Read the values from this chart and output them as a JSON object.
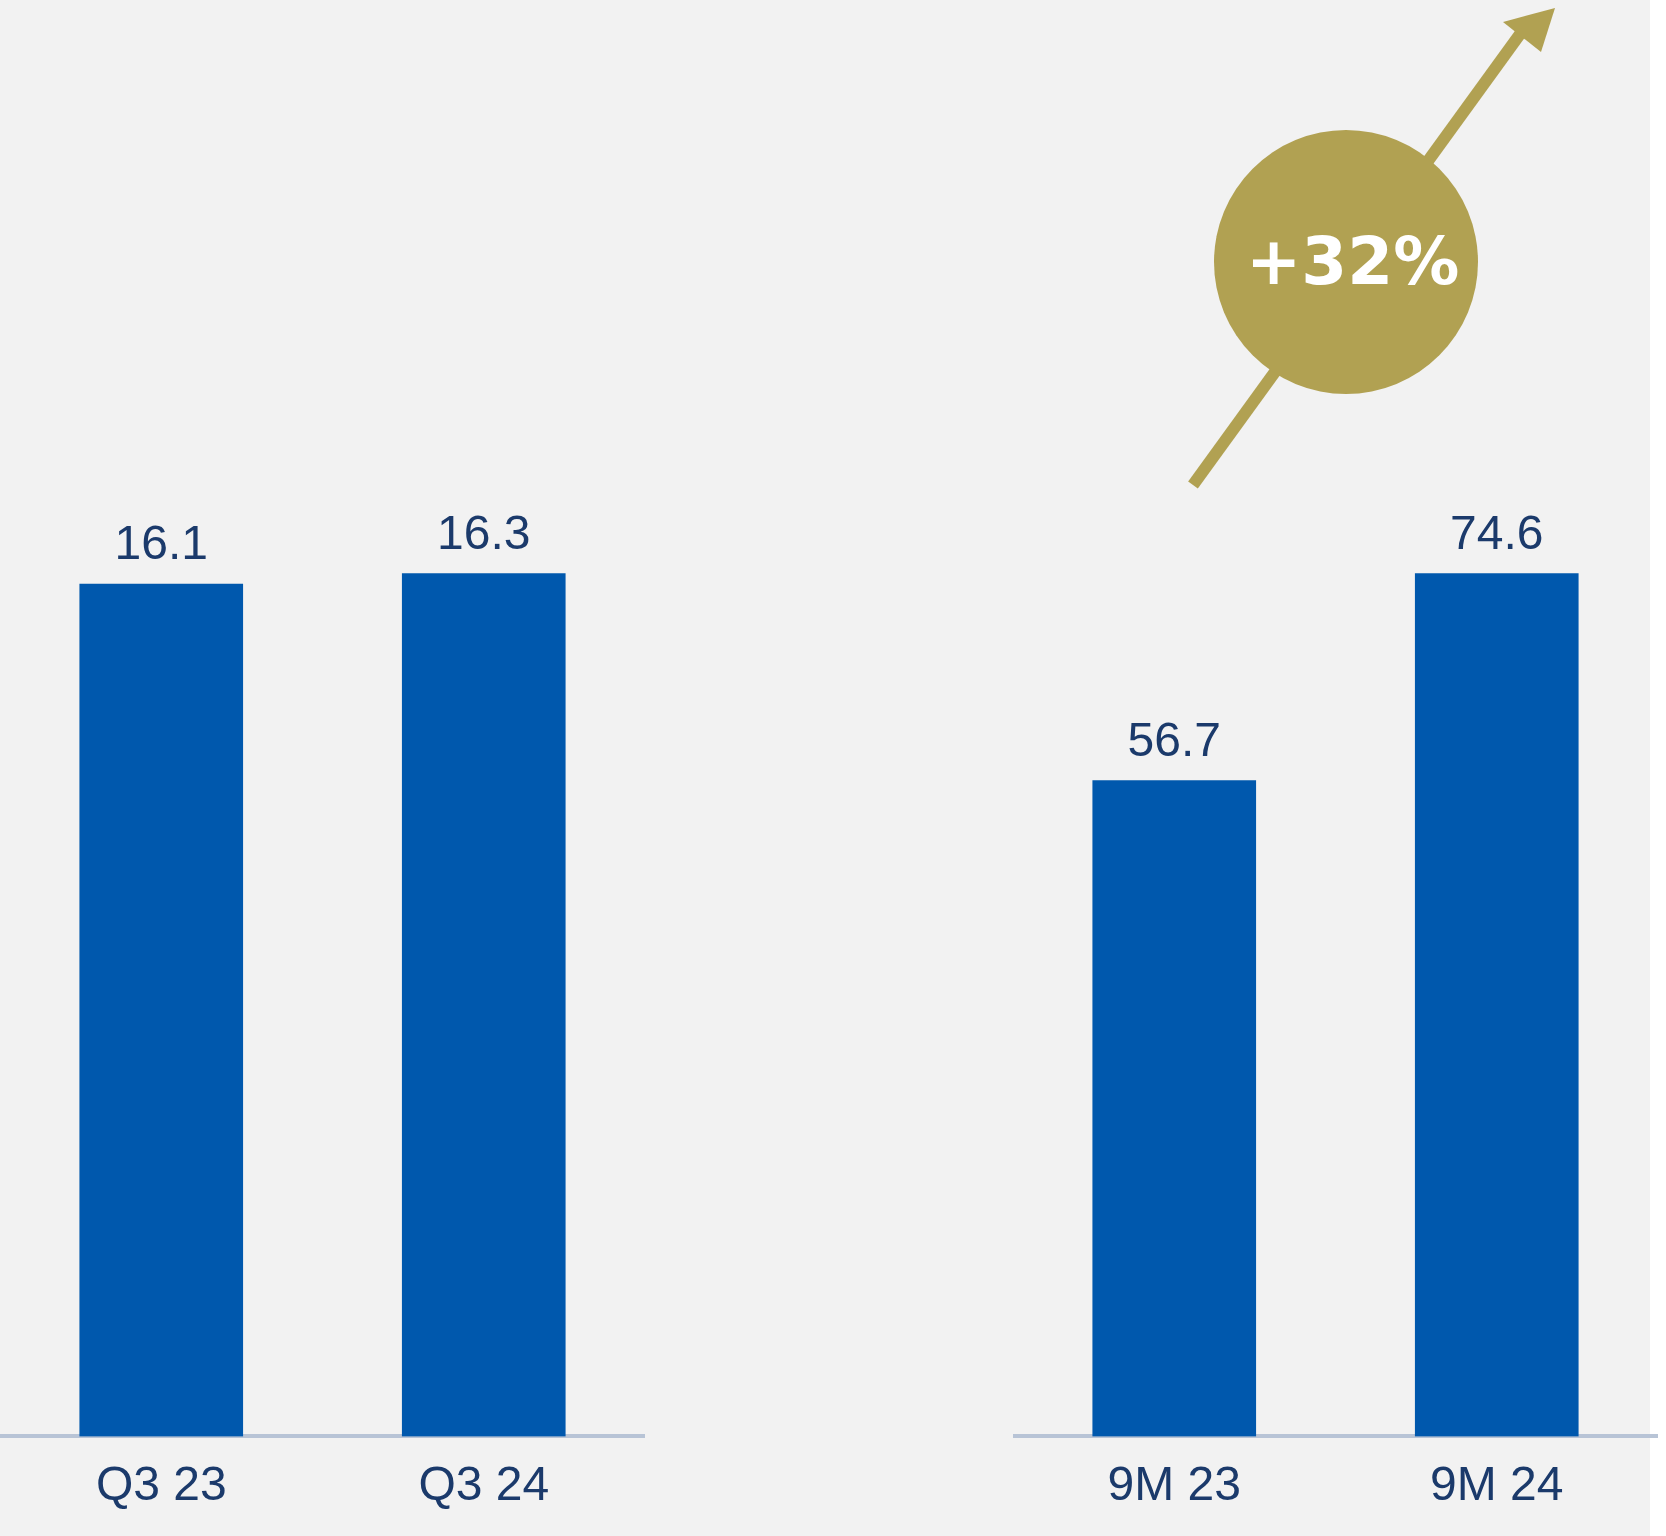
{
  "chart_data": [
    {
      "type": "bar",
      "categories": [
        "Q3 23",
        "Q3 24"
      ],
      "values": [
        16.1,
        16.3
      ],
      "color": "#0058ad",
      "data_labels": true
    },
    {
      "type": "bar",
      "categories": [
        "9M 23",
        "9M 24"
      ],
      "values": [
        56.7,
        74.6
      ],
      "color": "#0058ad",
      "data_labels": true,
      "annotations": [
        "+32%"
      ]
    }
  ]
}
